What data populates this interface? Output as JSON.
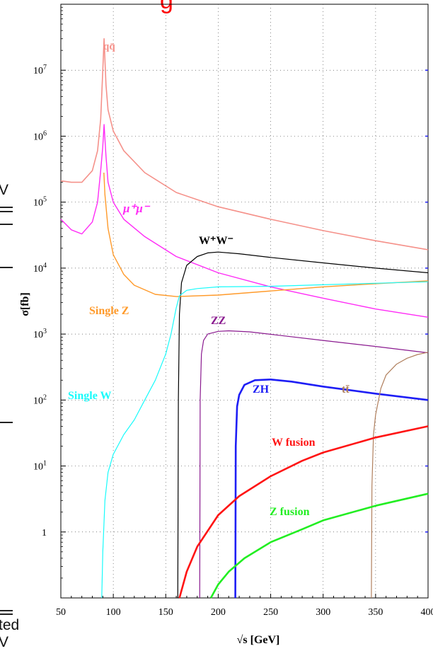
{
  "chart_data": {
    "type": "line",
    "title_fragment": "g",
    "xlabel": "√s [GeV]",
    "ylabel": "σ[fb]",
    "xlim": [
      50,
      400
    ],
    "ylim_log10": [
      -1,
      8
    ],
    "y_scale": "log",
    "x_ticks": [
      "50",
      "100",
      "150",
      "200",
      "250",
      "300",
      "350",
      "400"
    ],
    "y_ticks": [
      {
        "label": "1",
        "exp": "",
        "value": 1
      },
      {
        "label": "10",
        "exp": "1",
        "value": 10
      },
      {
        "label": "10",
        "exp": "2",
        "value": 100
      },
      {
        "label": "10",
        "exp": "3",
        "value": 1000
      },
      {
        "label": "10",
        "exp": "4",
        "value": 10000
      },
      {
        "label": "10",
        "exp": "5",
        "value": 100000
      },
      {
        "label": "10",
        "exp": "6",
        "value": 1000000
      },
      {
        "label": "10",
        "exp": "7",
        "value": 10000000
      }
    ],
    "grid": true,
    "series": [
      {
        "name": "qq̄",
        "color": "#f5918a",
        "width": 1.6,
        "x": [
          50,
          60,
          70,
          80,
          85,
          88,
          90,
          91.2,
          93,
          95,
          100,
          110,
          130,
          160,
          200,
          250,
          300,
          350,
          400
        ],
        "y": [
          210000,
          200000,
          200000,
          300000,
          600000,
          1800000,
          10000000,
          30000000,
          6000000,
          2500000,
          1200000,
          600000,
          280000,
          140000,
          85000,
          55000,
          37000,
          26000,
          19000
        ]
      },
      {
        "name": "μ⁺μ⁻",
        "color": "#ff2cf6",
        "width": 1.4,
        "x": [
          50,
          60,
          70,
          80,
          85,
          88,
          90,
          91.2,
          93,
          95,
          100,
          110,
          130,
          160,
          200,
          250,
          300,
          350,
          400
        ],
        "y": [
          55000,
          38000,
          33000,
          50000,
          100000,
          300000,
          700000,
          1500000,
          500000,
          200000,
          100000,
          55000,
          30000,
          15000,
          8500,
          5200,
          3500,
          2400,
          1800
        ]
      },
      {
        "name": "W⁺W⁻",
        "color": "#000000",
        "width": 1.2,
        "x": [
          161.5,
          162,
          163,
          165,
          170,
          180,
          190,
          200,
          220,
          250,
          300,
          350,
          400
        ],
        "y": [
          0.1,
          100,
          2000,
          6000,
          11000,
          15000,
          17000,
          17500,
          16500,
          14500,
          12000,
          10000,
          8500
        ]
      },
      {
        "name": "Single Z",
        "color": "#ff9a2a",
        "width": 1.4,
        "x": [
          91,
          92,
          95,
          100,
          110,
          120,
          140,
          160,
          200,
          250,
          300,
          350,
          400
        ],
        "y": [
          280000,
          130000,
          40000,
          16000,
          8000,
          5500,
          4000,
          3700,
          3900,
          4500,
          5200,
          5800,
          6400
        ]
      },
      {
        "name": "Single W",
        "color": "#18fbfb",
        "width": 1.2,
        "x": [
          89,
          90,
          92,
          95,
          100,
          110,
          120,
          130,
          140,
          150,
          155,
          160,
          163,
          170,
          180,
          200,
          250,
          300,
          350,
          400
        ],
        "y": [
          0.1,
          0.5,
          3,
          8,
          15,
          30,
          50,
          100,
          200,
          500,
          1000,
          2500,
          3800,
          4600,
          4900,
          5200,
          5300,
          5600,
          5900,
          6200
        ]
      },
      {
        "name": "ZZ",
        "color": "#8a1a8f",
        "width": 1.2,
        "x": [
          182.4,
          182.8,
          184,
          186,
          190,
          200,
          210,
          230,
          260,
          300,
          350,
          400
        ],
        "y": [
          0.1,
          100,
          500,
          800,
          1000,
          1100,
          1120,
          1080,
          950,
          800,
          650,
          520
        ]
      },
      {
        "name": "ZH",
        "color": "#1e1ef5",
        "width": 2.6,
        "x": [
          216.3,
          216.7,
          218,
          220,
          225,
          235,
          250,
          270,
          300,
          350,
          400
        ],
        "y": [
          0.1,
          20,
          80,
          120,
          170,
          200,
          205,
          190,
          160,
          125,
          100
        ]
      },
      {
        "name": "tt̄",
        "color": "#b07f5d",
        "width": 1.2,
        "x": [
          346,
          346.5,
          348,
          350,
          355,
          360,
          370,
          380,
          390,
          400
        ],
        "y": [
          0.1,
          5,
          30,
          60,
          150,
          240,
          350,
          430,
          490,
          530
        ]
      },
      {
        "name": "W fusion",
        "color": "#ff1414",
        "width": 2.6,
        "x": [
          163,
          170,
          180,
          200,
          220,
          250,
          280,
          300,
          350,
          400
        ],
        "y": [
          0.1,
          0.25,
          0.6,
          1.8,
          3.5,
          7,
          12,
          16,
          27,
          40
        ]
      },
      {
        "name": "Z fusion",
        "color": "#22ee22",
        "width": 2.6,
        "x": [
          193,
          200,
          210,
          225,
          250,
          280,
          300,
          350,
          400
        ],
        "y": [
          0.1,
          0.16,
          0.25,
          0.4,
          0.7,
          1.1,
          1.5,
          2.5,
          3.8
        ]
      }
    ],
    "labels": [
      {
        "text": "qq̄",
        "color": "#f5918a"
      },
      {
        "text": "μ⁺μ⁻",
        "color": "#ff2cf6"
      },
      {
        "text": "W⁺W⁻",
        "color": "#000000"
      },
      {
        "text": "Single Z",
        "color": "#ff9a2a"
      },
      {
        "text": "ZZ",
        "color": "#8a1a8f"
      },
      {
        "text": "tt̄",
        "color": "#b07f5d"
      },
      {
        "text": "ZH",
        "color": "#1e1ef5"
      },
      {
        "text": "Single W",
        "color": "#18fbfb"
      },
      {
        "text": "W fusion",
        "color": "#ff1414"
      },
      {
        "text": "Z fusion",
        "color": "#22ee22"
      }
    ],
    "cropped_text": [
      "V",
      "ted",
      "V"
    ]
  }
}
